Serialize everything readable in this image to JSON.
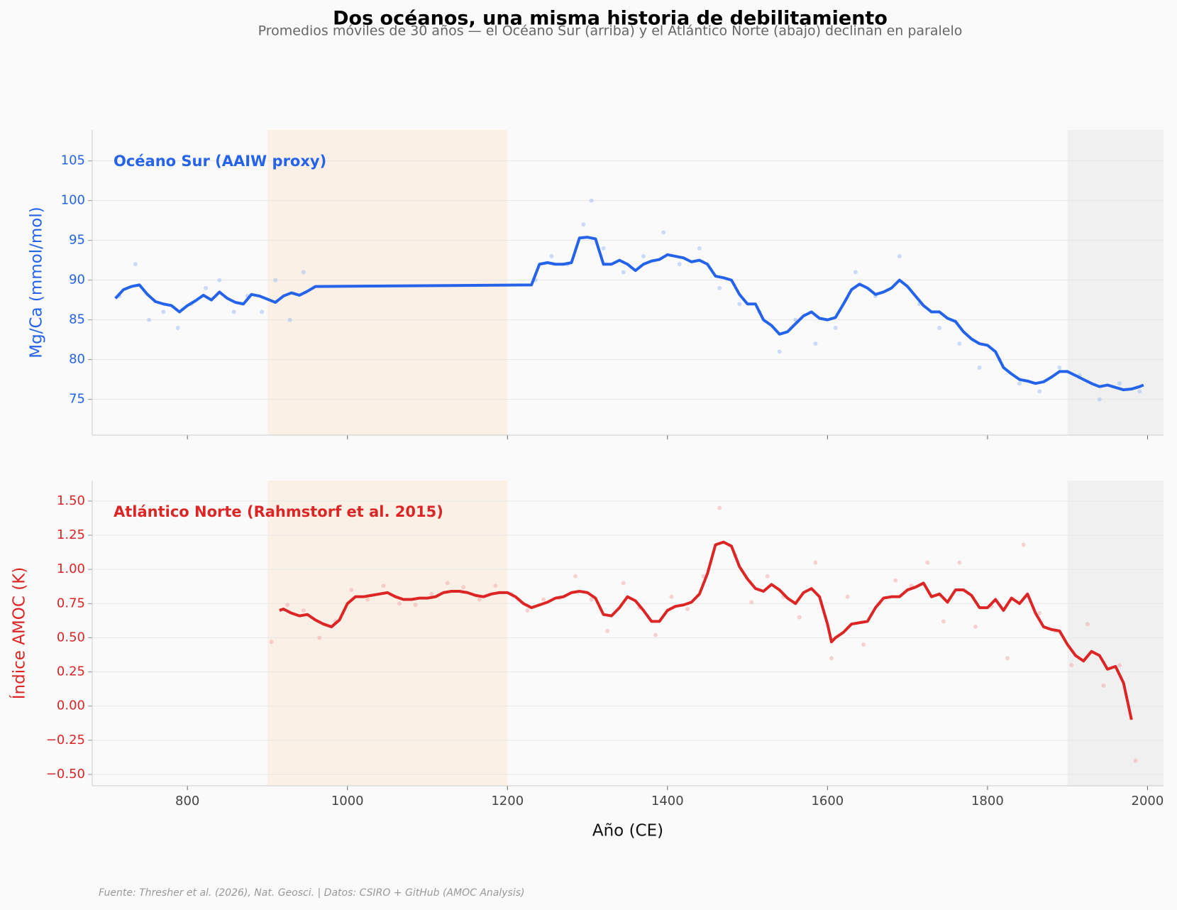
{
  "title": "Dos océanos, una misma historia de debilitamiento",
  "subtitle": "Promedios móviles de 30 años — el Océano Sur (arriba) y el Atlántico Norte (abajo) declinan en paralelo",
  "source": "Fuente: Thresher et al. (2026), Nat. Geosci. | Datos: CSIRO + GitHub (AMOC Analysis)",
  "chart_data": [
    {
      "type": "line",
      "ylabel": "Mg/Ca (mmol/mol)",
      "label_color": "#2563eb",
      "xlim": [
        681,
        2020
      ],
      "xticks": [
        800,
        1000,
        1200,
        1400,
        1600,
        1800,
        2000
      ],
      "xtick_labels": false,
      "ylim": [
        70.5,
        108.9
      ],
      "yticks": [
        75,
        80,
        85,
        90,
        95,
        100,
        105
      ],
      "grid": true,
      "shaded_spans": [
        {
          "start": 900,
          "end": 1200,
          "color": "#faf0e6"
        },
        {
          "start": 1900,
          "end": 2020,
          "color": "#f0f0f0"
        }
      ],
      "series": [
        {
          "kind": "scatter",
          "color": "#93b4f5",
          "x": [
            715,
            735,
            752,
            770,
            788,
            805,
            823,
            840,
            858,
            875,
            893,
            910,
            928,
            945,
            1235,
            1255,
            1275,
            1295,
            1305,
            1320,
            1345,
            1370,
            1395,
            1415,
            1440,
            1465,
            1490,
            1515,
            1540,
            1560,
            1585,
            1610,
            1635,
            1660,
            1690,
            1715,
            1740,
            1765,
            1790,
            1815,
            1840,
            1865,
            1890,
            1915,
            1940,
            1965,
            1990
          ],
          "values": [
            88,
            92,
            85,
            86,
            84,
            87,
            89,
            90,
            86,
            88,
            86,
            90,
            85,
            91,
            90,
            93,
            92,
            97,
            100,
            94,
            91,
            93,
            96,
            92,
            94,
            89,
            87,
            86,
            81,
            85,
            82,
            84,
            91,
            88,
            93,
            87,
            84,
            82,
            79,
            80,
            77,
            76,
            79,
            78,
            75,
            77,
            76
          ]
        },
        {
          "kind": "line",
          "name": "Océano Sur (AAIW proxy)",
          "color": "#2563eb",
          "x": [
            710,
            720,
            730,
            740,
            750,
            760,
            770,
            780,
            790,
            800,
            810,
            820,
            830,
            840,
            850,
            860,
            870,
            880,
            890,
            900,
            910,
            920,
            930,
            940,
            950,
            960,
            1230,
            1240,
            1250,
            1260,
            1270,
            1280,
            1290,
            1300,
            1310,
            1320,
            1330,
            1340,
            1350,
            1360,
            1370,
            1380,
            1390,
            1400,
            1410,
            1420,
            1430,
            1440,
            1450,
            1460,
            1470,
            1480,
            1490,
            1500,
            1510,
            1520,
            1530,
            1540,
            1550,
            1560,
            1570,
            1580,
            1590,
            1600,
            1610,
            1620,
            1630,
            1640,
            1650,
            1660,
            1670,
            1680,
            1690,
            1700,
            1710,
            1720,
            1730,
            1740,
            1750,
            1760,
            1770,
            1780,
            1790,
            1800,
            1810,
            1820,
            1830,
            1840,
            1850,
            1860,
            1870,
            1880,
            1890,
            1900,
            1910,
            1920,
            1930,
            1940,
            1950,
            1960,
            1970,
            1980,
            1990,
            1995
          ],
          "values": [
            87.7,
            88.8,
            89.2,
            89.4,
            88.2,
            87.3,
            87.0,
            86.8,
            86.0,
            86.8,
            87.4,
            88.1,
            87.5,
            88.5,
            87.7,
            87.2,
            87.0,
            88.2,
            88.0,
            87.6,
            87.2,
            88.0,
            88.4,
            88.1,
            88.6,
            89.2,
            89.4,
            92.0,
            92.2,
            92.0,
            92.0,
            92.2,
            95.3,
            95.4,
            95.2,
            92.0,
            92.0,
            92.5,
            92.0,
            91.2,
            92.0,
            92.4,
            92.6,
            93.2,
            93.0,
            92.8,
            92.3,
            92.5,
            92.0,
            90.5,
            90.3,
            90.0,
            88.2,
            87.0,
            87.0,
            85.0,
            84.3,
            83.2,
            83.5,
            84.5,
            85.5,
            86.0,
            85.2,
            85.0,
            85.3,
            87.0,
            88.8,
            89.5,
            89.0,
            88.2,
            88.5,
            89.0,
            90.0,
            89.2,
            88.0,
            86.8,
            86.0,
            86.0,
            85.2,
            84.8,
            83.5,
            82.6,
            82.0,
            81.8,
            81.0,
            79.0,
            78.2,
            77.5,
            77.3,
            77.0,
            77.2,
            77.8,
            78.5,
            78.5,
            78.0,
            77.5,
            77.0,
            76.6,
            76.8,
            76.5,
            76.2,
            76.3,
            76.6,
            76.8
          ]
        }
      ]
    },
    {
      "type": "line",
      "ylabel": "Índice AMOC (K)",
      "xlabel": "Año (CE)",
      "label_color": "#dc2626",
      "xlim": [
        681,
        2020
      ],
      "xticks": [
        800,
        1000,
        1200,
        1400,
        1600,
        1800,
        2000
      ],
      "xtick_labels": true,
      "ylim": [
        -0.583,
        1.65
      ],
      "yticks": [
        {
          "value": -0.5,
          "label": "−0.50"
        },
        {
          "value": -0.25,
          "label": "−0.25"
        },
        {
          "value": 0,
          "label": "0.00"
        },
        {
          "value": 0.25,
          "label": "0.25"
        },
        {
          "value": 0.5,
          "label": "0.50"
        },
        {
          "value": 0.75,
          "label": "0.75"
        },
        {
          "value": 1,
          "label": "1.00"
        },
        {
          "value": 1.25,
          "label": "1.25"
        },
        {
          "value": 1.5,
          "label": "1.50"
        }
      ],
      "grid": true,
      "shaded_spans": [
        {
          "start": 900,
          "end": 1200,
          "color": "#faf0e6"
        },
        {
          "start": 1900,
          "end": 2020,
          "color": "#f0f0f0"
        }
      ],
      "series": [
        {
          "kind": "scatter",
          "color": "#f0a0a0",
          "x": [
            905,
            925,
            945,
            965,
            985,
            1005,
            1025,
            1045,
            1065,
            1085,
            1105,
            1125,
            1145,
            1165,
            1185,
            1205,
            1225,
            1245,
            1265,
            1285,
            1305,
            1325,
            1345,
            1365,
            1385,
            1405,
            1425,
            1445,
            1465,
            1485,
            1505,
            1525,
            1545,
            1565,
            1585,
            1605,
            1625,
            1645,
            1665,
            1685,
            1705,
            1725,
            1745,
            1765,
            1785,
            1805,
            1825,
            1845,
            1865,
            1885,
            1905,
            1925,
            1945,
            1965,
            1985
          ],
          "values": [
            0.47,
            0.74,
            0.7,
            0.5,
            0.62,
            0.85,
            0.78,
            0.88,
            0.75,
            0.74,
            0.82,
            0.9,
            0.87,
            0.78,
            0.88,
            0.82,
            0.7,
            0.78,
            0.79,
            0.95,
            0.78,
            0.55,
            0.9,
            0.72,
            0.52,
            0.8,
            0.71,
            0.95,
            1.45,
            1.1,
            0.76,
            0.95,
            0.8,
            0.65,
            1.05,
            0.35,
            0.8,
            0.45,
            0.75,
            0.92,
            0.88,
            1.05,
            0.62,
            1.05,
            0.58,
            0.73,
            0.35,
            1.18,
            0.68,
            0.55,
            0.3,
            0.6,
            0.15,
            0.3,
            -0.4
          ]
        },
        {
          "kind": "line",
          "name": "Atlántico Norte (Rahmstorf et al. 2015)",
          "color": "#dc2626",
          "x": [
            915,
            920,
            930,
            940,
            950,
            960,
            970,
            980,
            990,
            1000,
            1010,
            1020,
            1030,
            1040,
            1050,
            1060,
            1070,
            1080,
            1090,
            1100,
            1110,
            1120,
            1130,
            1140,
            1150,
            1160,
            1170,
            1180,
            1190,
            1200,
            1210,
            1220,
            1230,
            1240,
            1250,
            1260,
            1270,
            1280,
            1290,
            1300,
            1310,
            1320,
            1330,
            1340,
            1350,
            1360,
            1370,
            1380,
            1390,
            1400,
            1410,
            1420,
            1430,
            1440,
            1450,
            1460,
            1470,
            1480,
            1490,
            1500,
            1510,
            1520,
            1530,
            1540,
            1550,
            1560,
            1570,
            1580,
            1590,
            1600,
            1605,
            1610,
            1620,
            1630,
            1640,
            1650,
            1660,
            1670,
            1680,
            1690,
            1700,
            1710,
            1720,
            1730,
            1740,
            1750,
            1760,
            1770,
            1780,
            1790,
            1800,
            1810,
            1820,
            1830,
            1840,
            1850,
            1860,
            1870,
            1880,
            1890,
            1900,
            1910,
            1920,
            1930,
            1940,
            1950,
            1960,
            1970,
            1980
          ],
          "values": [
            0.7,
            0.71,
            0.68,
            0.66,
            0.67,
            0.63,
            0.6,
            0.58,
            0.63,
            0.75,
            0.8,
            0.8,
            0.81,
            0.82,
            0.83,
            0.8,
            0.78,
            0.78,
            0.79,
            0.79,
            0.8,
            0.83,
            0.84,
            0.84,
            0.83,
            0.81,
            0.8,
            0.82,
            0.83,
            0.83,
            0.8,
            0.75,
            0.72,
            0.74,
            0.76,
            0.79,
            0.8,
            0.83,
            0.84,
            0.83,
            0.79,
            0.67,
            0.66,
            0.72,
            0.8,
            0.77,
            0.7,
            0.62,
            0.62,
            0.7,
            0.73,
            0.74,
            0.76,
            0.82,
            0.97,
            1.18,
            1.2,
            1.17,
            1.02,
            0.93,
            0.86,
            0.84,
            0.89,
            0.85,
            0.79,
            0.75,
            0.83,
            0.86,
            0.8,
            0.6,
            0.47,
            0.5,
            0.54,
            0.6,
            0.61,
            0.62,
            0.72,
            0.79,
            0.8,
            0.8,
            0.85,
            0.87,
            0.9,
            0.8,
            0.82,
            0.76,
            0.85,
            0.85,
            0.81,
            0.72,
            0.72,
            0.78,
            0.7,
            0.79,
            0.75,
            0.82,
            0.68,
            0.58,
            0.56,
            0.55,
            0.45,
            0.37,
            0.33,
            0.4,
            0.37,
            0.27,
            0.29,
            0.17,
            -0.1
          ]
        }
      ]
    }
  ]
}
